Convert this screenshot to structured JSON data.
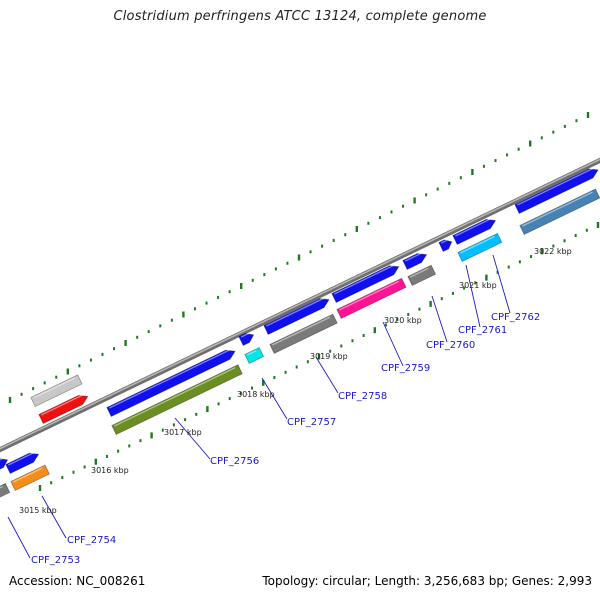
{
  "title": "Clostridium perfringens ATCC 13124, complete genome",
  "footer": {
    "accession": "Accession: NC_008261",
    "summary": "Topology: circular; Length: 3,256,683 bp; Genes: 2,993"
  },
  "tick_labels": [
    "3015 kbp",
    "3016 kbp",
    "3017 kbp",
    "3018 kbp",
    "3019 kbp",
    "3020 kbp",
    "3021 kbp",
    "3022 kbp"
  ],
  "gene_labels": [
    "CPF_2753",
    "CPF_2754",
    "CPF_2756",
    "CPF_2757",
    "CPF_2758",
    "CPF_2759",
    "CPF_2760",
    "CPF_2761",
    "CPF_2762"
  ],
  "colors": {
    "backbone": "#8c8c8c",
    "tick": "#1f7a1f",
    "cds_forward": "#1010ee",
    "label": "#1a1acc",
    "gray": "#7a7a7a",
    "light_gray": "#c8c8c8",
    "red": "#ee1111",
    "orange": "#f28c1a",
    "olive": "#6b8e23",
    "cyan": "#00e5e5",
    "magenta": "#ff1493",
    "sky": "#00bfff",
    "steel": "#4682b4"
  }
}
